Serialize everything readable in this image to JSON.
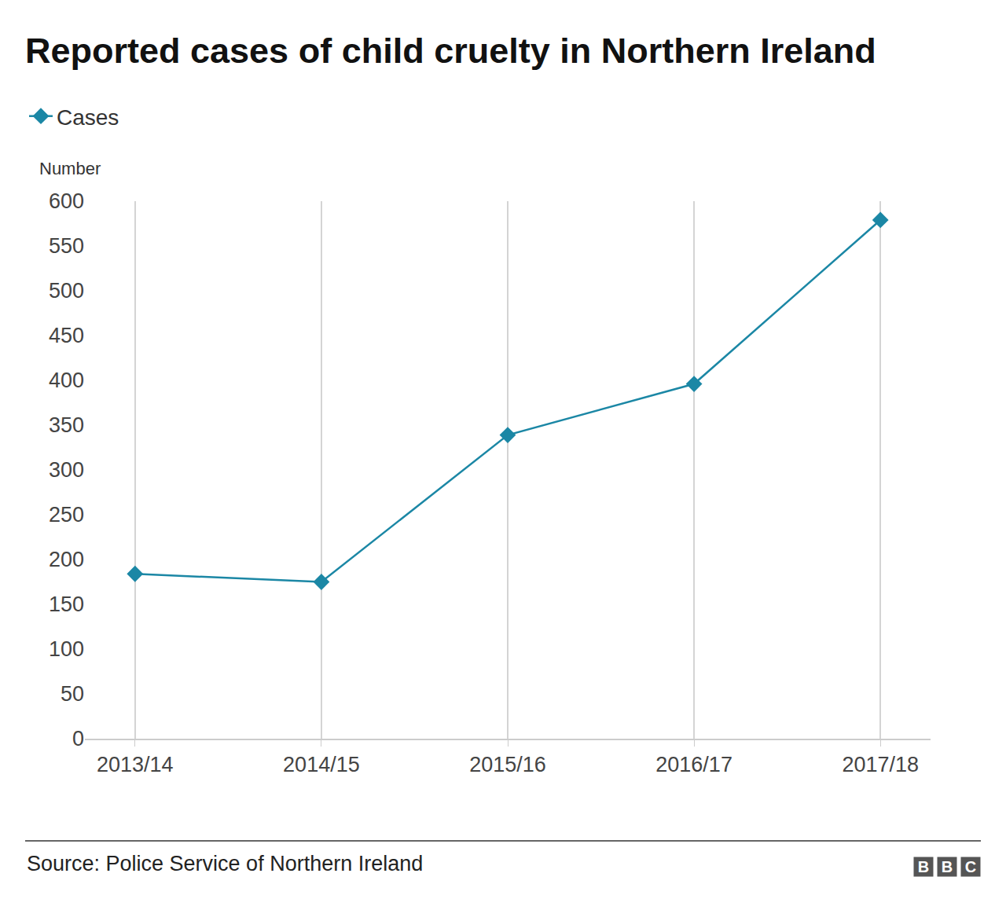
{
  "chart_data": {
    "type": "line",
    "title": "Reported cases of child cruelty in Northern Ireland",
    "ylabel": "Number",
    "categories": [
      "2013/14",
      "2014/15",
      "2015/16",
      "2016/17",
      "2017/18"
    ],
    "series": [
      {
        "name": "Cases",
        "color": "#1b87a5",
        "values": [
          184,
          175,
          339,
          396,
          579
        ]
      }
    ],
    "marker": "diamond",
    "ylim": [
      0,
      600
    ],
    "yticks": [
      0,
      50,
      100,
      150,
      200,
      250,
      300,
      350,
      400,
      450,
      500,
      550,
      600
    ],
    "grid": true,
    "legend": "top left",
    "source": "Source: Police Service of Northern Ireland",
    "logo": "BBC"
  }
}
